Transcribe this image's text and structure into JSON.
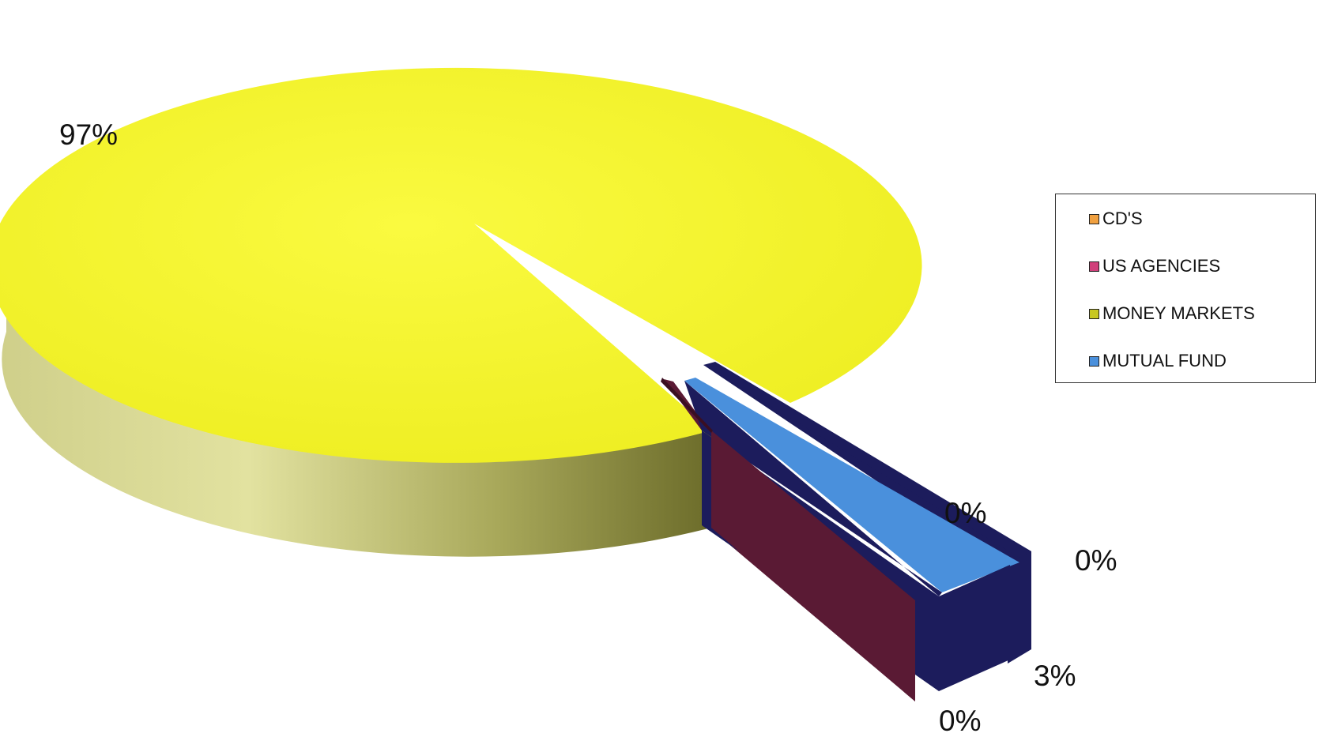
{
  "chart_data": {
    "type": "pie",
    "style": "3d-exploded",
    "categories": [
      "CD'S",
      "US AGENCIES",
      "MONEY MARKETS",
      "MUTUAL FUND"
    ],
    "values": [
      0,
      0,
      97,
      3
    ],
    "data_labels": [
      "0%",
      "0%",
      "97%",
      "3%"
    ],
    "colors": [
      "#f0a040",
      "#d0407a",
      "#f2f22c",
      "#4a90dc"
    ],
    "side_colors": [
      "#1c1c5c",
      "#5a1a34",
      "#8c8c3c",
      "#1c1c5c"
    ],
    "legend_position": "right"
  }
}
